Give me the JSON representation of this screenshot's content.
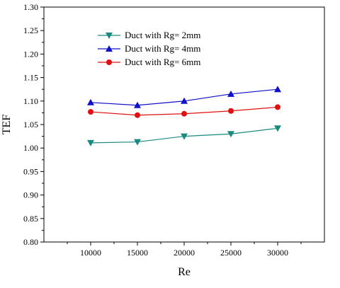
{
  "chart_data": {
    "type": "line",
    "title": "",
    "xlabel": "Re",
    "ylabel": "TEF",
    "x": [
      10000,
      15000,
      20000,
      25000,
      30000
    ],
    "x_ticks": [
      "10000",
      "15000",
      "20000",
      "25000",
      "30000"
    ],
    "xlim": [
      5000,
      35000
    ],
    "ylim": [
      0.8,
      1.3
    ],
    "y_ticks": [
      "0.80",
      "0.85",
      "0.90",
      "0.95",
      "1.00",
      "1.05",
      "1.10",
      "1.15",
      "1.20",
      "1.25",
      "1.30"
    ],
    "grid": false,
    "legend_position": "top-left",
    "series": [
      {
        "name": "Duct with Rg= 2mm",
        "values": [
          1.011,
          1.013,
          1.025,
          1.03,
          1.042
        ],
        "color": "#1a8a80",
        "marker": "triangle-down"
      },
      {
        "name": "Duct with Rg= 4mm",
        "values": [
          1.097,
          1.091,
          1.1,
          1.115,
          1.125
        ],
        "color": "#1010c8",
        "marker": "triangle-up"
      },
      {
        "name": "Duct with Rg= 6mm",
        "values": [
          1.077,
          1.07,
          1.073,
          1.079,
          1.087
        ],
        "color": "#e01010",
        "marker": "circle"
      }
    ]
  }
}
